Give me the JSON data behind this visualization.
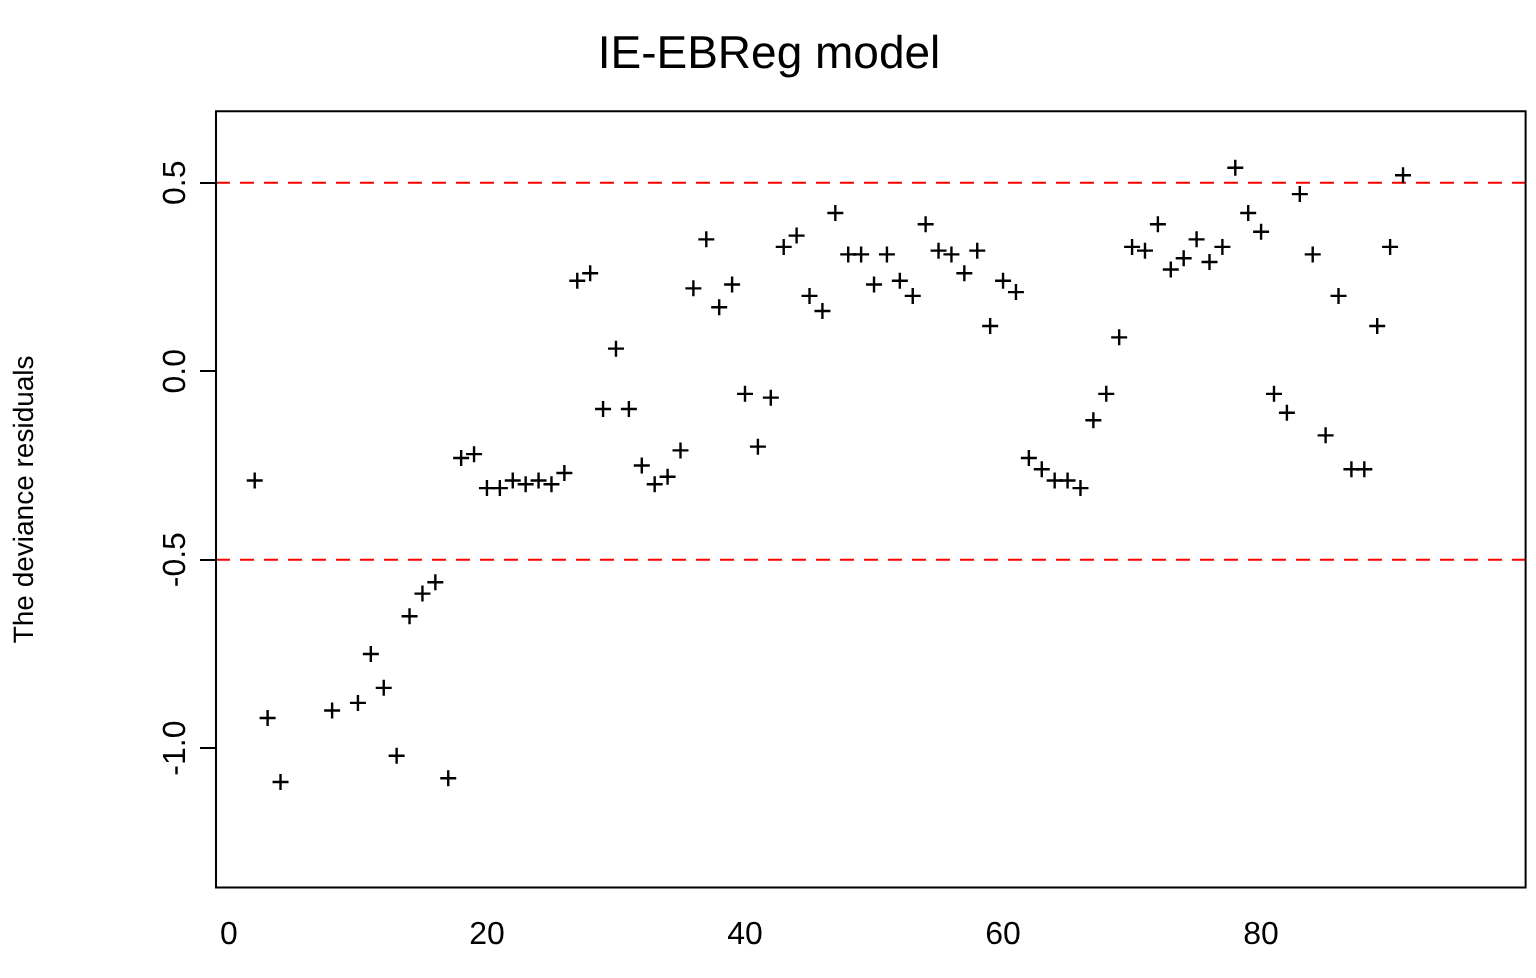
{
  "chart_data": {
    "type": "scatter",
    "title": "IE-EBReg model",
    "ylabel": "The deviance residuals",
    "x": [
      2,
      3,
      4,
      8,
      10,
      11,
      12,
      13,
      14,
      15,
      16,
      17,
      18,
      19,
      20,
      21,
      22,
      23,
      24,
      25,
      26,
      27,
      28,
      29,
      30,
      31,
      32,
      33,
      34,
      35,
      36,
      37,
      38,
      39,
      40,
      41,
      42,
      43,
      44,
      45,
      46,
      47,
      48,
      49,
      50,
      51,
      52,
      53,
      54,
      55,
      56,
      57,
      58,
      59,
      60,
      61,
      62,
      63,
      64,
      65,
      66,
      67,
      68,
      69,
      70,
      71,
      72,
      73,
      74,
      75,
      76,
      77,
      78,
      79,
      80,
      81,
      82,
      83,
      84,
      85,
      86,
      87,
      88,
      89,
      90,
      91
    ],
    "series": [
      {
        "color": "#000000",
        "values": [
          -0.29,
          -0.92,
          -1.09,
          -0.9,
          -0.88,
          -0.75,
          -0.84,
          -1.02,
          -0.65,
          -0.59,
          -0.56,
          -1.08,
          -0.23,
          -0.22,
          -0.31,
          -0.31,
          -0.29,
          -0.3,
          -0.29,
          -0.3,
          -0.27,
          0.24,
          0.26,
          -0.1,
          0.06,
          -0.1,
          -0.25,
          -0.3,
          -0.28,
          -0.21,
          0.22,
          0.35,
          0.17,
          0.23,
          -0.06,
          -0.2,
          -0.07,
          0.33,
          0.36,
          0.2,
          0.16,
          0.42,
          0.31,
          0.31,
          0.23,
          0.31,
          0.24,
          0.2,
          0.39,
          0.32,
          0.31,
          0.26,
          0.32,
          0.12,
          0.24,
          0.21,
          -0.23,
          -0.26,
          -0.29,
          -0.29,
          -0.31,
          -0.13,
          -0.06,
          0.09,
          0.33,
          0.32,
          0.39,
          0.27,
          0.3,
          0.35,
          0.29,
          0.33,
          0.54,
          0.42,
          0.37,
          -0.06,
          -0.11,
          0.47,
          0.31,
          -0.17,
          0.2,
          -0.26,
          -0.26,
          0.12,
          0.33,
          0.52
        ]
      }
    ],
    "xlim": [
      -1,
      100.5
    ],
    "ylim": [
      -1.37,
      0.69
    ],
    "xticks": [
      0,
      20,
      40,
      60,
      80
    ],
    "yticks": [
      {
        "value": -1,
        "label": "-1.0"
      },
      {
        "value": -0.5,
        "label": "-0.5"
      },
      {
        "value": 0,
        "label": "0.0"
      },
      {
        "value": 0.5,
        "label": "0.5"
      }
    ],
    "ref_lines": [
      {
        "axis": "y",
        "value": 0.5,
        "color": "#ff0000",
        "line_style": "dashed"
      },
      {
        "axis": "y",
        "value": -0.5,
        "color": "#ff0000",
        "line_style": "dashed"
      }
    ],
    "marker": "cross",
    "grid": false,
    "legend": false
  }
}
